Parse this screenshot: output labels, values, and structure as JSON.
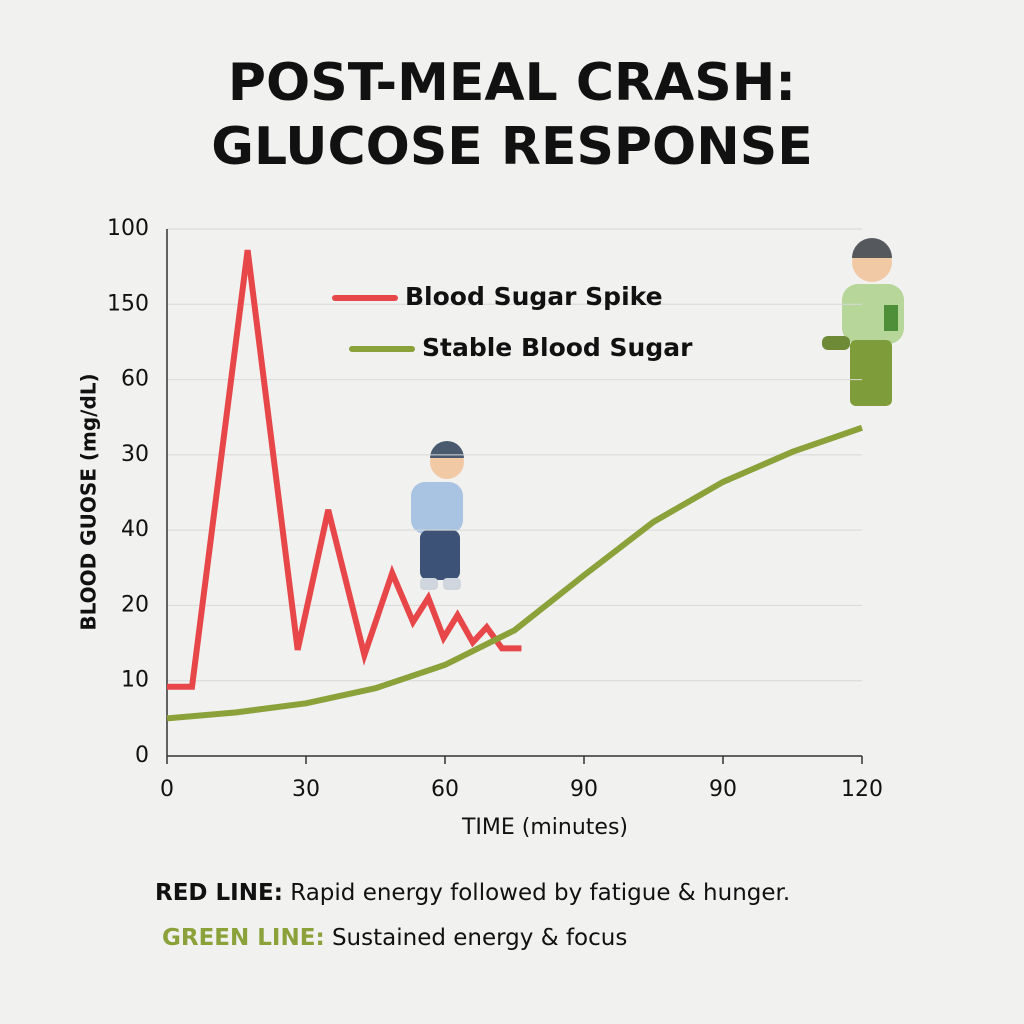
{
  "chart_data": {
    "type": "line",
    "title": [
      "POST-MEAL CRASH:",
      "GLUCOSE RESPONSE"
    ],
    "y_label": "BLOOD GUOSE  (mg/dL)",
    "x_label": "TIME (minutes)",
    "xlim": [
      0,
      5
    ],
    "xticks": [
      0,
      {
        "value": 1,
        "label": "30"
      },
      {
        "value": 2,
        "label": "60"
      },
      {
        "value": 3,
        "label": "90"
      },
      {
        "value": 4,
        "label": "90"
      },
      {
        "value": 5,
        "label": "120"
      }
    ],
    "ylim": [
      0,
      7
    ],
    "yticks": [
      0,
      {
        "value": 1,
        "label": "10"
      },
      {
        "value": 2,
        "label": "20"
      },
      {
        "value": 3,
        "label": "40"
      },
      {
        "value": 4,
        "label": "30"
      },
      {
        "value": 5,
        "label": "60"
      },
      {
        "value": 6,
        "label": "150"
      },
      {
        "value": 7,
        "label": "100"
      }
    ],
    "grid": true,
    "series": [
      {
        "name": "Blood Sugar Spike",
        "color": "#e8474a",
        "x": [
          0,
          0.18,
          0.58,
          0.94,
          1.16,
          1.42,
          1.62,
          1.77,
          1.88,
          1.99,
          2.09,
          2.2,
          2.3,
          2.41,
          2.55
        ],
        "values": [
          0.92,
          0.92,
          6.72,
          1.41,
          3.27,
          1.34,
          2.43,
          1.78,
          2.1,
          1.57,
          1.87,
          1.51,
          1.71,
          1.43,
          1.43
        ]
      },
      {
        "name": "Stable Blood Sugar",
        "color": "#8ba13a",
        "x": [
          0,
          0.5,
          1,
          1.5,
          2,
          2.5,
          3,
          3.5,
          4,
          4.5,
          5
        ],
        "values": [
          0.5,
          0.58,
          0.7,
          0.9,
          1.21,
          1.67,
          2.4,
          3.11,
          3.64,
          4.04,
          4.36
        ]
      }
    ],
    "notes": [
      {
        "lead": "RED LINE:",
        "text": "Rapid energy followed by fatigue & hunger."
      },
      {
        "lead": "GREEN LINE:",
        "text": "Sustained energy & focus"
      }
    ]
  }
}
